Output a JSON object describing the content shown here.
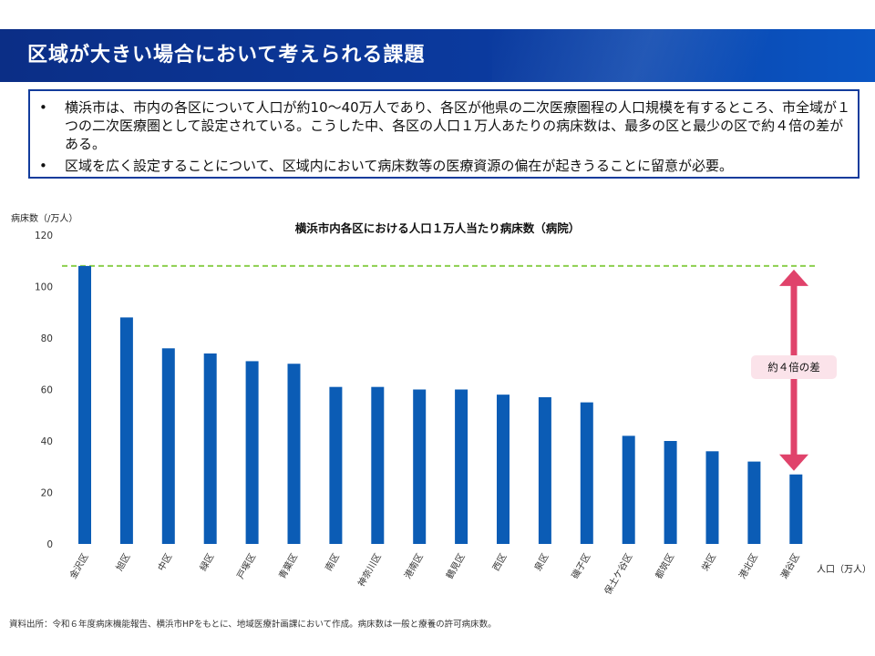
{
  "header": {
    "title": "区域が大きい場合において考えられる課題"
  },
  "summary": {
    "bullet_symbol": "•",
    "items": [
      "横浜市は、市内の各区について人口が約10～40万人であり、各区が他県の二次医療圏程の人口規模を有するところ、市全域が１つの二次医療圏として設定されている。こうした中、各区の人口１万人あたりの病床数は、最多の区と最少の区で約４倍の差がある。",
      "区域を広く設定することについて、区域内において病床数等の医療資源の偏在が起きうることに留意が必要。"
    ]
  },
  "chart_data": {
    "type": "bar",
    "title": "横浜市内各区における人口１万人当たり病床数（病院）",
    "ylabel": "病床数（/万人）",
    "xlabel": "人口（万人）",
    "ylim": [
      0,
      120
    ],
    "yticks": [
      0,
      20,
      40,
      60,
      80,
      100,
      120
    ],
    "categories": [
      "金沢区",
      "旭区",
      "中区",
      "緑区",
      "戸塚区",
      "青葉区",
      "南区",
      "神奈川区",
      "港南区",
      "鶴見区",
      "西区",
      "泉区",
      "磯子区",
      "保土ケ谷区",
      "都筑区",
      "栄区",
      "港北区",
      "瀬谷区"
    ],
    "values": [
      108,
      88,
      76,
      74,
      71,
      70,
      61,
      61,
      60,
      60,
      58,
      57,
      55,
      42,
      40,
      36,
      32,
      27
    ],
    "bar_color": "#0b5cb5",
    "reference_line": {
      "value": 108,
      "color": "#8ccf4d",
      "style": "dashed"
    },
    "annotation": {
      "text": "約４倍の差",
      "arrow_color": "#e0436b",
      "from": 27,
      "to": 108
    },
    "grid": false
  },
  "source": "資料出所：令和６年度病床機能報告、横浜市HPをもとに、地域医療計画課において作成。病床数は一般と療養の許可病床数。"
}
